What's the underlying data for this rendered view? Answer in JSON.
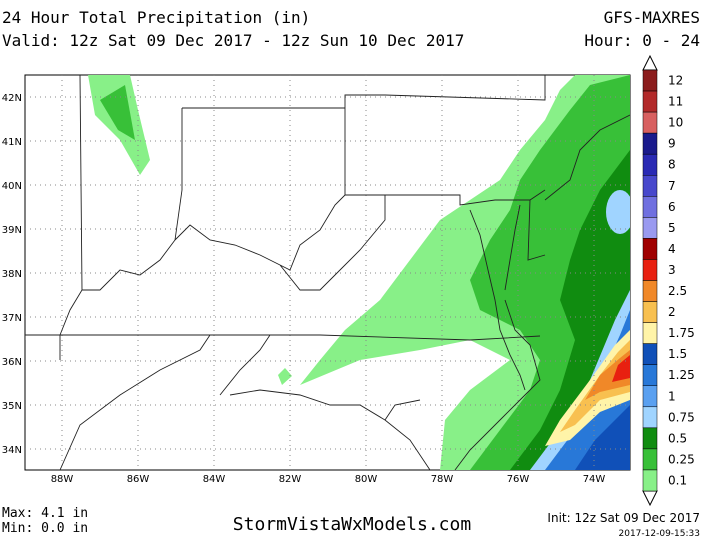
{
  "header": {
    "title": "24 Hour Total Precipitation (in)",
    "valid": "Valid: 12z Sat 09 Dec 2017 - 12z Sun 10 Dec 2017",
    "model": "GFS-MAXRES",
    "hours": "Hour: 0 - 24"
  },
  "map": {
    "latitudes": [
      "42N",
      "41N",
      "40N",
      "39N",
      "38N",
      "37N",
      "36N",
      "35N",
      "34N"
    ],
    "longitudes": [
      "88W",
      "86W",
      "84W",
      "82W",
      "80W",
      "78W",
      "76W",
      "74W"
    ]
  },
  "colorbar": [
    {
      "label": "12",
      "color": "#8b1c1c"
    },
    {
      "label": "11",
      "color": "#b22a2a"
    },
    {
      "label": "10",
      "color": "#d86060"
    },
    {
      "label": "9",
      "color": "#1a1a8c"
    },
    {
      "label": "8",
      "color": "#2a2ab4"
    },
    {
      "label": "7",
      "color": "#4848cc"
    },
    {
      "label": "6",
      "color": "#7070e0"
    },
    {
      "label": "5",
      "color": "#9a9af0"
    },
    {
      "label": "4",
      "color": "#a00000"
    },
    {
      "label": "3",
      "color": "#e82010"
    },
    {
      "label": "2.5",
      "color": "#f08828"
    },
    {
      "label": "2",
      "color": "#f8c050"
    },
    {
      "label": "1.75",
      "color": "#fff4a8"
    },
    {
      "label": "1.5",
      "color": "#1050b8"
    },
    {
      "label": "1.25",
      "color": "#2878d8"
    },
    {
      "label": "1",
      "color": "#5aa0f0"
    },
    {
      "label": "0.75",
      "color": "#a0d4ff"
    },
    {
      "label": "0.5",
      "color": "#108c10"
    },
    {
      "label": "0.25",
      "color": "#38c038"
    },
    {
      "label": "0.1",
      "color": "#88f088"
    }
  ],
  "footer": {
    "max": "Max: 4.1 in",
    "min": "Min: 0.0 in",
    "site": "StormVistaWxModels.com",
    "init": "Init: 12z Sat 09 Dec 2017",
    "stamp": "2017-12-09-15:33"
  }
}
